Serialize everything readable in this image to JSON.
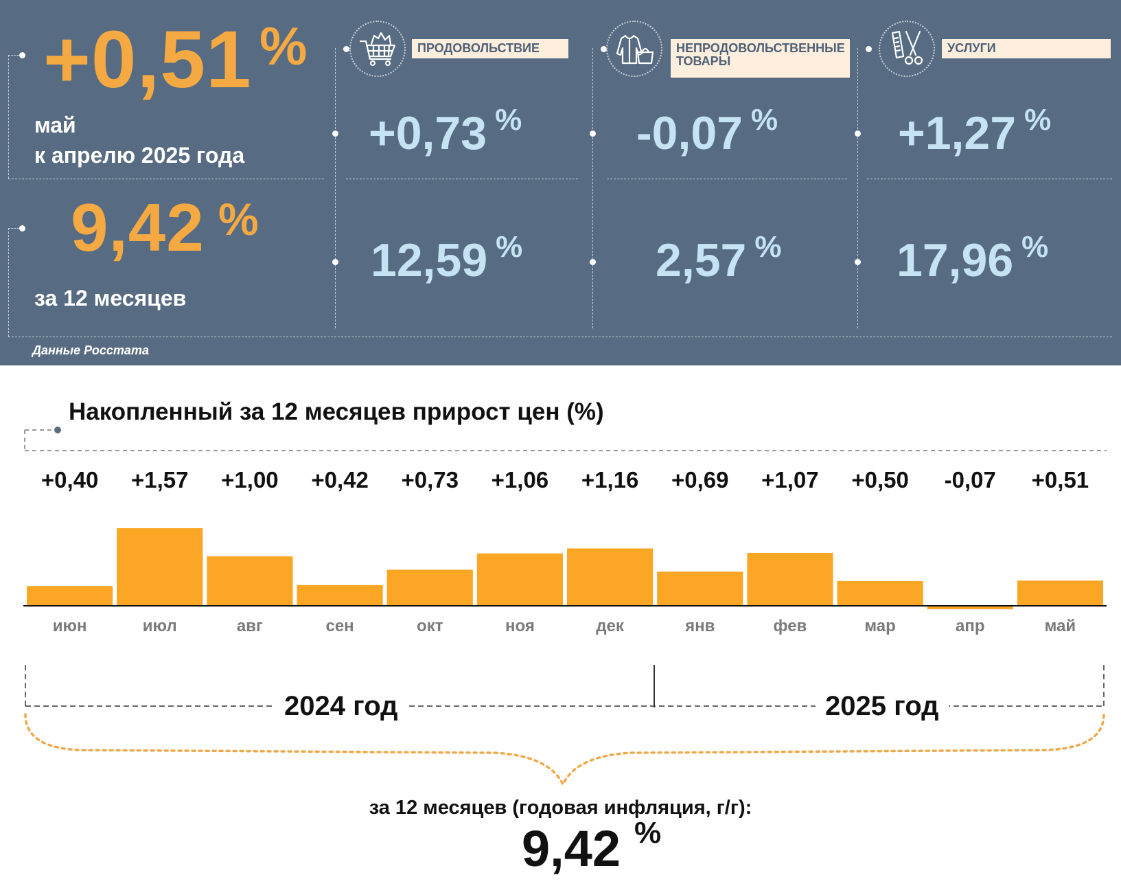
{
  "summary": {
    "monthly_value": "+0,51",
    "monthly_unit": "%",
    "monthly_line1": "май",
    "monthly_line2": "к апрелю 2025 года",
    "annual_value": "9,42",
    "annual_unit": "%",
    "annual_caption": "за 12 месяцев"
  },
  "categories": [
    {
      "label": "ПРОДОВОЛЬСТВИЕ",
      "icon": "shopping-basket-icon",
      "monthly": "+0,73",
      "annual": "12,59",
      "unit": "%"
    },
    {
      "label": "НЕПРОДОВОЛЬСТВЕННЫЕ ТОВАРЫ",
      "icon": "clothing-icon",
      "monthly": "-0,07",
      "annual": "2,57",
      "unit": "%"
    },
    {
      "label": "УСЛУГИ",
      "icon": "comb-scissors-icon",
      "monthly": "+1,27",
      "annual": "17,96",
      "unit": "%"
    }
  ],
  "source": "Данные Росстата",
  "chart_data": {
    "type": "bar",
    "title": "Накопленный за 12 месяцев прирост цен (%)",
    "categories": [
      "июн",
      "июл",
      "авг",
      "сен",
      "окт",
      "ноя",
      "дек",
      "янв",
      "фев",
      "мар",
      "апр",
      "май"
    ],
    "values": [
      0.4,
      1.57,
      1.0,
      0.42,
      0.73,
      1.06,
      1.16,
      0.69,
      1.07,
      0.5,
      -0.07,
      0.51
    ],
    "value_labels": [
      "+0,40",
      "+1,57",
      "+1,00",
      "+0,42",
      "+0,73",
      "+1,06",
      "+1,16",
      "+0,69",
      "+1,07",
      "+0,50",
      "-0,07",
      "+0,51"
    ],
    "year_groups": [
      {
        "label": "2024 год",
        "months": 7
      },
      {
        "label": "2025 год",
        "months": 5
      }
    ],
    "total_caption": "за 12 месяцев (годовая инфляция, г/г):",
    "total_value": "9,42",
    "total_unit": "%",
    "colors": {
      "bar": "#fca626",
      "axis": "#111111",
      "brace": "#f0a94a"
    }
  },
  "colors": {
    "panel": "#576c82",
    "accent": "#f5a942",
    "light_value": "#c6e3f4",
    "label_bg": "#fdeedd"
  }
}
